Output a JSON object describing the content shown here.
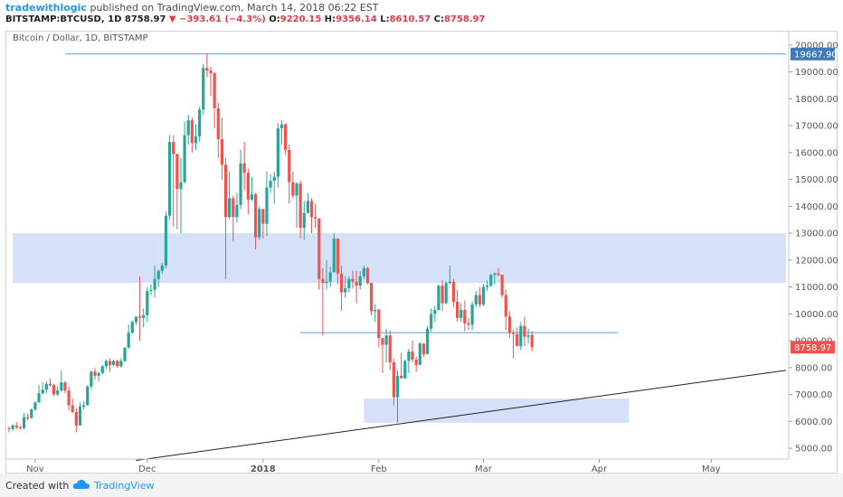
{
  "header": {
    "author": "tradewithlogic",
    "published_text": "published on TradingView.com, March 14, 2018 06:22 EST",
    "symbol": "BITSTAMP:BTCUSD, 1D",
    "last": "8758.97",
    "change": "−393.61 (−4.3%)",
    "o_label": "O:",
    "o_value": "9220.15",
    "h_label": "H:",
    "h_value": "9356.14",
    "l_label": "L:",
    "l_value": "8610.57",
    "c_label": "C:",
    "c_value": "8758.97"
  },
  "footer": {
    "created_with": "Created with",
    "brand": "TradingView"
  },
  "colors": {
    "up": "#26a69a",
    "down": "#ef5350",
    "zone": "#c9daf8",
    "hline": "#5b9bd5",
    "trend": "#222222",
    "price_tag_last": "#ef5350",
    "price_tag_level": "#3d7ab8"
  },
  "chart_data": {
    "type": "candlestick",
    "title": "Bitcoin / Dollar, 1D, BITSTAMP",
    "ylim": [
      4600,
      20500
    ],
    "y_ticks": [
      5000,
      6000,
      7000,
      8000,
      9000,
      10000,
      11000,
      12000,
      13000,
      14000,
      15000,
      16000,
      17000,
      18000,
      19000,
      20000
    ],
    "y_tick_labels": [
      "5000.00",
      "6000.00",
      "7000.00",
      "8000.00",
      "9000.00",
      "10000.00",
      "11000.00",
      "12000.00",
      "13000.00",
      "14000.00",
      "15000.00",
      "16000.00",
      "17000.00",
      "18000.00",
      "19000.00",
      "20000.00"
    ],
    "x_range": [
      "2017-10-25",
      "2018-05-21"
    ],
    "x_ticks": [
      {
        "date": "2017-11-01",
        "label": "Nov"
      },
      {
        "date": "2017-12-01",
        "label": "Dec"
      },
      {
        "date": "2018-01-01",
        "label": "2018"
      },
      {
        "date": "2018-02-01",
        "label": "Feb"
      },
      {
        "date": "2018-03-01",
        "label": "Mar"
      },
      {
        "date": "2018-04-01",
        "label": "Apr"
      },
      {
        "date": "2018-05-01",
        "label": "May"
      }
    ],
    "price_labels": [
      {
        "value": "19667.90",
        "kind": "level"
      },
      {
        "value": "8758.97",
        "kind": "last"
      }
    ],
    "annotations": {
      "horizontal_lines": [
        {
          "value": 19667.9,
          "x_start": "2017-11-09",
          "x_end": "2018-05-21"
        },
        {
          "value": 9300,
          "x_start": "2018-01-11",
          "x_end": "2018-04-06"
        }
      ],
      "zones": [
        {
          "x_start": "2017-10-26",
          "x_end": "2018-05-21",
          "y_low": 11150,
          "y_high": 13000
        },
        {
          "x_start": "2018-01-28",
          "x_end": "2018-04-09",
          "y_low": 5950,
          "y_high": 6850
        }
      ],
      "trendline": {
        "x1": "2017-11-28",
        "y1": 4550,
        "x2": "2018-05-21",
        "y2": 7900
      }
    },
    "candles": [
      [
        "2017-10-25",
        5750,
        5800,
        5600,
        5720
      ],
      [
        "2017-10-26",
        5720,
        5900,
        5650,
        5850
      ],
      [
        "2017-10-27",
        5850,
        5960,
        5700,
        5780
      ],
      [
        "2017-10-28",
        5780,
        5850,
        5700,
        5750
      ],
      [
        "2017-10-29",
        5750,
        6300,
        5700,
        6150
      ],
      [
        "2017-10-30",
        6150,
        6300,
        6050,
        6130
      ],
      [
        "2017-10-31",
        6130,
        6480,
        6100,
        6450
      ],
      [
        "2017-11-01",
        6450,
        6750,
        6380,
        6700
      ],
      [
        "2017-11-02",
        6700,
        7350,
        6700,
        7050
      ],
      [
        "2017-11-03",
        7050,
        7450,
        7000,
        7180
      ],
      [
        "2017-11-04",
        7180,
        7500,
        7050,
        7400
      ],
      [
        "2017-11-05",
        7400,
        7600,
        7300,
        7350
      ],
      [
        "2017-11-06",
        7350,
        7400,
        6950,
        7000
      ],
      [
        "2017-11-07",
        7000,
        7300,
        6950,
        7150
      ],
      [
        "2017-11-08",
        7150,
        7900,
        7100,
        7450
      ],
      [
        "2017-11-09",
        7450,
        7500,
        7050,
        7150
      ],
      [
        "2017-11-10",
        7150,
        7300,
        6400,
        6600
      ],
      [
        "2017-11-11",
        6600,
        6850,
        6300,
        6350
      ],
      [
        "2017-11-12",
        6350,
        6500,
        5600,
        5850
      ],
      [
        "2017-11-13",
        5850,
        6700,
        5850,
        6550
      ],
      [
        "2017-11-14",
        6550,
        6750,
        6450,
        6600
      ],
      [
        "2017-11-15",
        6600,
        7350,
        6600,
        7300
      ],
      [
        "2017-11-16",
        7300,
        7900,
        7200,
        7850
      ],
      [
        "2017-11-17",
        7850,
        8000,
        7550,
        7700
      ],
      [
        "2017-11-18",
        7700,
        7850,
        7500,
        7800
      ],
      [
        "2017-11-19",
        7800,
        8100,
        7750,
        8050
      ],
      [
        "2017-11-20",
        8050,
        8300,
        7950,
        8250
      ],
      [
        "2017-11-21",
        8250,
        8350,
        7850,
        8100
      ],
      [
        "2017-11-22",
        8100,
        8300,
        8050,
        8250
      ],
      [
        "2017-11-23",
        8250,
        8300,
        8000,
        8050
      ],
      [
        "2017-11-24",
        8050,
        8350,
        8000,
        8250
      ],
      [
        "2017-11-25",
        8250,
        8750,
        8200,
        8750
      ],
      [
        "2017-11-26",
        8750,
        9600,
        8700,
        9300
      ],
      [
        "2017-11-27",
        9300,
        9750,
        9250,
        9700
      ],
      [
        "2017-11-28",
        9700,
        9900,
        9600,
        9900
      ],
      [
        "2017-11-29",
        9900,
        11400,
        9000,
        9850
      ],
      [
        "2017-11-30",
        9850,
        10200,
        9500,
        9950
      ],
      [
        "2017-12-01",
        9950,
        11000,
        9700,
        10850
      ],
      [
        "2017-12-02",
        10850,
        11100,
        10700,
        10900
      ],
      [
        "2017-12-03",
        10900,
        11800,
        10600,
        11300
      ],
      [
        "2017-12-04",
        11300,
        11650,
        11000,
        11600
      ],
      [
        "2017-12-05",
        11600,
        11900,
        11500,
        11800
      ],
      [
        "2017-12-06",
        11800,
        13800,
        11700,
        13650
      ],
      [
        "2017-12-07",
        13650,
        16650,
        13500,
        16400
      ],
      [
        "2017-12-08",
        16400,
        16650,
        13250,
        15950
      ],
      [
        "2017-12-09",
        15950,
        15950,
        13150,
        14650
      ],
      [
        "2017-12-10",
        14650,
        15800,
        13000,
        14900
      ],
      [
        "2017-12-11",
        14900,
        17150,
        14850,
        16650
      ],
      [
        "2017-12-12",
        16650,
        17400,
        16300,
        17200
      ],
      [
        "2017-12-13",
        17200,
        17300,
        16000,
        16350
      ],
      [
        "2017-12-14",
        16350,
        17050,
        16100,
        16600
      ],
      [
        "2017-12-15",
        16600,
        17700,
        16400,
        17600
      ],
      [
        "2017-12-16",
        17600,
        19300,
        17400,
        19150
      ],
      [
        "2017-12-17",
        19150,
        19700,
        18800,
        19050
      ],
      [
        "2017-12-18",
        19050,
        19200,
        18100,
        18950
      ],
      [
        "2017-12-19",
        18950,
        19000,
        16900,
        17650
      ],
      [
        "2017-12-20",
        17650,
        17850,
        15800,
        16500
      ],
      [
        "2017-12-21",
        16500,
        17300,
        15000,
        15550
      ],
      [
        "2017-12-22",
        15550,
        15800,
        11300,
        13600
      ],
      [
        "2017-12-23",
        13600,
        15300,
        13550,
        14300
      ],
      [
        "2017-12-24",
        14300,
        14400,
        12700,
        13600
      ],
      [
        "2017-12-25",
        13600,
        14500,
        13400,
        14050
      ],
      [
        "2017-12-26",
        14050,
        16100,
        13900,
        15600
      ],
      [
        "2017-12-27",
        15600,
        16400,
        14600,
        15250
      ],
      [
        "2017-12-28",
        15250,
        15400,
        13700,
        14250
      ],
      [
        "2017-12-29",
        14250,
        15100,
        14200,
        14450
      ],
      [
        "2017-12-30",
        14450,
        14500,
        12400,
        12850
      ],
      [
        "2017-12-31",
        12850,
        14000,
        12750,
        13900
      ],
      [
        "2018-01-01",
        13900,
        13900,
        12800,
        13350
      ],
      [
        "2018-01-02",
        13350,
        15300,
        12900,
        14700
      ],
      [
        "2018-01-03",
        14700,
        15200,
        14500,
        14950
      ],
      [
        "2018-01-04",
        14950,
        15300,
        14100,
        15100
      ],
      [
        "2018-01-05",
        15100,
        17100,
        14700,
        16900
      ],
      [
        "2018-01-06",
        16900,
        17200,
        16300,
        17050
      ],
      [
        "2018-01-07",
        17050,
        17100,
        15900,
        16100
      ],
      [
        "2018-01-08",
        16100,
        16300,
        14100,
        14900
      ],
      [
        "2018-01-09",
        14900,
        15300,
        14300,
        14400
      ],
      [
        "2018-01-10",
        14400,
        14900,
        13200,
        14850
      ],
      [
        "2018-01-11",
        14850,
        14950,
        12800,
        13200
      ],
      [
        "2018-01-12",
        13200,
        14200,
        12750,
        13750
      ],
      [
        "2018-01-13",
        13750,
        14500,
        13750,
        14200
      ],
      [
        "2018-01-14",
        14200,
        14300,
        13000,
        13600
      ],
      [
        "2018-01-15",
        13600,
        14100,
        13200,
        13550
      ],
      [
        "2018-01-16",
        13550,
        13550,
        10900,
        11300
      ],
      [
        "2018-01-17",
        11300,
        11700,
        9200,
        11150
      ],
      [
        "2018-01-18",
        11150,
        12000,
        10900,
        11200
      ],
      [
        "2018-01-19",
        11200,
        11750,
        11000,
        11550
      ],
      [
        "2018-01-20",
        11550,
        13000,
        11550,
        12800
      ],
      [
        "2018-01-21",
        12800,
        12800,
        11100,
        11500
      ],
      [
        "2018-01-22",
        11500,
        11800,
        10100,
        10800
      ],
      [
        "2018-01-23",
        10800,
        11400,
        10600,
        10950
      ],
      [
        "2018-01-24",
        10950,
        11400,
        10800,
        11300
      ],
      [
        "2018-01-25",
        11300,
        11600,
        10950,
        11200
      ],
      [
        "2018-01-26",
        11200,
        11600,
        10400,
        11050
      ],
      [
        "2018-01-27",
        11050,
        11600,
        10900,
        11400
      ],
      [
        "2018-01-28",
        11400,
        11800,
        11300,
        11700
      ],
      [
        "2018-01-29",
        11700,
        11750,
        11100,
        11150
      ],
      [
        "2018-01-30",
        11150,
        11150,
        9950,
        10100
      ],
      [
        "2018-01-31",
        10100,
        10350,
        9700,
        10150
      ],
      [
        "2018-02-01",
        10150,
        10200,
        8750,
        9100
      ],
      [
        "2018-02-02",
        9100,
        9100,
        7800,
        8850
      ],
      [
        "2018-02-03",
        8850,
        9450,
        8200,
        9200
      ],
      [
        "2018-02-04",
        9200,
        9400,
        7900,
        8200
      ],
      [
        "2018-02-05",
        8200,
        8350,
        6600,
        6900
      ],
      [
        "2018-02-06",
        6900,
        7900,
        5950,
        7700
      ],
      [
        "2018-02-07",
        7700,
        8550,
        7600,
        7600
      ],
      [
        "2018-02-08",
        7600,
        8300,
        7600,
        8250
      ],
      [
        "2018-02-09",
        8250,
        8700,
        7800,
        8600
      ],
      [
        "2018-02-10",
        8600,
        9000,
        8200,
        8300
      ],
      [
        "2018-02-11",
        8300,
        8400,
        7850,
        8100
      ],
      [
        "2018-02-12",
        8100,
        8950,
        8100,
        8900
      ],
      [
        "2018-02-13",
        8900,
        8900,
        8400,
        8500
      ],
      [
        "2018-02-14",
        8500,
        9550,
        8500,
        9450
      ],
      [
        "2018-02-15",
        9450,
        10200,
        9350,
        10000
      ],
      [
        "2018-02-16",
        10000,
        10300,
        9700,
        10150
      ],
      [
        "2018-02-17",
        10150,
        11100,
        10100,
        11050
      ],
      [
        "2018-02-18",
        11050,
        11250,
        10100,
        10400
      ],
      [
        "2018-02-19",
        10400,
        11200,
        10350,
        11150
      ],
      [
        "2018-02-20",
        11150,
        11800,
        11100,
        11200
      ],
      [
        "2018-02-21",
        11200,
        11300,
        10250,
        10450
      ],
      [
        "2018-02-22",
        10450,
        10900,
        9700,
        9850
      ],
      [
        "2018-02-23",
        9850,
        10400,
        9700,
        10150
      ],
      [
        "2018-02-24",
        10150,
        10500,
        9350,
        9650
      ],
      [
        "2018-02-25",
        9650,
        9850,
        9400,
        9600
      ],
      [
        "2018-02-26",
        9600,
        10450,
        9400,
        10350
      ],
      [
        "2018-02-27",
        10350,
        10850,
        10250,
        10700
      ],
      [
        "2018-02-28",
        10700,
        11000,
        10250,
        10350
      ],
      [
        "2018-03-01",
        10350,
        11100,
        10300,
        11000
      ],
      [
        "2018-03-02",
        11000,
        11250,
        10850,
        11050
      ],
      [
        "2018-03-03",
        11050,
        11500,
        11000,
        11450
      ],
      [
        "2018-03-04",
        11450,
        11550,
        11100,
        11500
      ],
      [
        "2018-03-05",
        11500,
        11700,
        11400,
        11450
      ],
      [
        "2018-03-06",
        11450,
        11450,
        10600,
        10700
      ],
      [
        "2018-03-07",
        10700,
        10900,
        9400,
        9900
      ],
      [
        "2018-03-08",
        9900,
        10100,
        9100,
        9300
      ],
      [
        "2018-03-09",
        9300,
        9400,
        8350,
        9250
      ],
      [
        "2018-03-10",
        9250,
        9500,
        8800,
        8800
      ],
      [
        "2018-03-11",
        8800,
        9700,
        8650,
        9550
      ],
      [
        "2018-03-12",
        9550,
        9900,
        8800,
        9150
      ],
      [
        "2018-03-13",
        9150,
        9450,
        8900,
        9200
      ],
      [
        "2018-03-14",
        9220.15,
        9356.14,
        8610.57,
        8758.97
      ]
    ]
  }
}
